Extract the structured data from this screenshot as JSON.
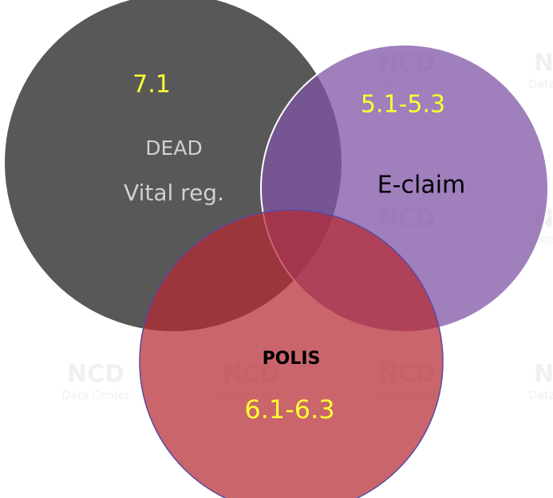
{
  "watermark": {
    "line1": "NCD",
    "line2": "Data Center"
  },
  "sets": [
    {
      "code": "7.1",
      "label": "DEAD",
      "sublabel": "Vital reg."
    },
    {
      "code": "5.1-5.3",
      "label": "E-claim"
    },
    {
      "code": "6.1-6.3",
      "label": "POLIS"
    }
  ]
}
